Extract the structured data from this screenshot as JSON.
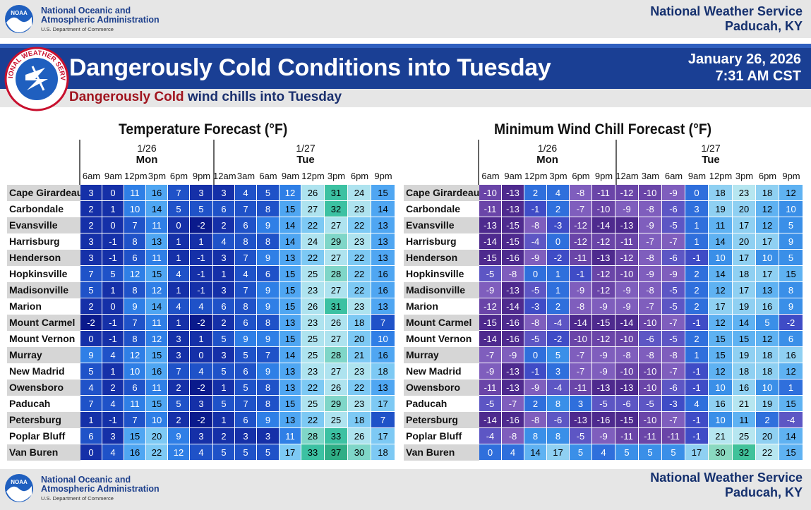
{
  "header": {
    "noaa_line1": "National Oceanic and",
    "noaa_line2": "Atmospheric Administration",
    "noaa_line3": "U.S. Department of Commerce",
    "nws_line1": "National Weather Service",
    "nws_line2": "Paducah, KY"
  },
  "banner": {
    "title": "Dangerously Cold Conditions into Tuesday",
    "date": "January 26, 2026",
    "time": "7:31 AM CST",
    "subtitle_red": "Dangerously Cold",
    "subtitle_rest": " wind chills into Tuesday",
    "seal_text": "NATIONAL WEATHER SERVICE"
  },
  "days": {
    "mon_date": "1/26",
    "mon_name": "Mon",
    "tue_date": "1/27",
    "tue_name": "Tue"
  },
  "hours": [
    "6am",
    "9am",
    "12pm",
    "3pm",
    "6pm",
    "9pm",
    "12am",
    "3am",
    "6am",
    "9am",
    "12pm",
    "3pm",
    "6pm",
    "9pm"
  ],
  "cities": [
    "Cape Girardeau",
    "Carbondale",
    "Evansville",
    "Harrisburg",
    "Henderson",
    "Hopkinsville",
    "Madisonville",
    "Marion",
    "Mount Carmel",
    "Mount Vernon",
    "Murray",
    "New Madrid",
    "Owensboro",
    "Paducah",
    "Petersburg",
    "Poplar Bluff",
    "Van Buren"
  ],
  "temperature": {
    "title": "Temperature Forecast (°F)",
    "values": [
      [
        3,
        0,
        11,
        16,
        7,
        3,
        3,
        4,
        5,
        12,
        26,
        31,
        24,
        15
      ],
      [
        2,
        1,
        10,
        14,
        5,
        5,
        6,
        7,
        8,
        15,
        27,
        32,
        23,
        14
      ],
      [
        2,
        0,
        7,
        11,
        0,
        -2,
        2,
        6,
        9,
        14,
        22,
        27,
        22,
        13
      ],
      [
        3,
        -1,
        8,
        13,
        1,
        1,
        4,
        8,
        8,
        14,
        24,
        29,
        23,
        13
      ],
      [
        3,
        -1,
        6,
        11,
        1,
        -1,
        3,
        7,
        9,
        13,
        22,
        27,
        22,
        13
      ],
      [
        7,
        5,
        12,
        15,
        4,
        -1,
        1,
        4,
        6,
        15,
        25,
        28,
        22,
        16
      ],
      [
        5,
        1,
        8,
        12,
        1,
        -1,
        3,
        7,
        9,
        15,
        23,
        27,
        22,
        16
      ],
      [
        2,
        0,
        9,
        14,
        4,
        4,
        6,
        8,
        9,
        15,
        26,
        31,
        23,
        13
      ],
      [
        -2,
        -1,
        7,
        11,
        1,
        -2,
        2,
        6,
        8,
        13,
        23,
        26,
        18,
        7
      ],
      [
        0,
        -1,
        8,
        12,
        3,
        1,
        5,
        9,
        9,
        15,
        25,
        27,
        20,
        10
      ],
      [
        9,
        4,
        12,
        15,
        3,
        0,
        3,
        5,
        7,
        14,
        25,
        28,
        21,
        16
      ],
      [
        5,
        1,
        10,
        16,
        7,
        4,
        5,
        6,
        9,
        13,
        23,
        27,
        23,
        18
      ],
      [
        4,
        2,
        6,
        11,
        2,
        -2,
        1,
        5,
        8,
        13,
        22,
        26,
        22,
        13
      ],
      [
        7,
        4,
        11,
        15,
        5,
        3,
        5,
        7,
        8,
        15,
        25,
        29,
        23,
        17
      ],
      [
        1,
        -1,
        7,
        10,
        2,
        -2,
        1,
        6,
        9,
        13,
        22,
        25,
        18,
        7
      ],
      [
        6,
        3,
        15,
        20,
        9,
        3,
        2,
        3,
        3,
        11,
        28,
        33,
        26,
        17
      ],
      [
        0,
        4,
        16,
        22,
        12,
        4,
        5,
        5,
        5,
        17,
        33,
        37,
        30,
        18
      ]
    ]
  },
  "windchill": {
    "title": "Minimum Wind Chill Forecast (°F)",
    "values": [
      [
        -10,
        -13,
        2,
        4,
        -8,
        -11,
        -12,
        -10,
        -9,
        0,
        18,
        23,
        18,
        12
      ],
      [
        -11,
        -13,
        -1,
        2,
        -7,
        -10,
        -9,
        -8,
        -6,
        3,
        19,
        20,
        12,
        10
      ],
      [
        -13,
        -15,
        -8,
        -3,
        -12,
        -14,
        -13,
        -9,
        -5,
        1,
        11,
        17,
        12,
        5
      ],
      [
        -14,
        -15,
        -4,
        0,
        -12,
        -12,
        -11,
        -7,
        -7,
        1,
        14,
        20,
        17,
        9
      ],
      [
        -15,
        -16,
        -9,
        -2,
        -11,
        -13,
        -12,
        -8,
        -6,
        -1,
        10,
        17,
        10,
        5
      ],
      [
        -5,
        -8,
        0,
        1,
        -1,
        -12,
        -10,
        -9,
        -9,
        2,
        14,
        18,
        17,
        15
      ],
      [
        -9,
        -13,
        -5,
        1,
        -9,
        -12,
        -9,
        -8,
        -5,
        2,
        12,
        17,
        13,
        8
      ],
      [
        -12,
        -14,
        -3,
        2,
        -8,
        -9,
        -9,
        -7,
        -5,
        2,
        17,
        19,
        16,
        9
      ],
      [
        -15,
        -16,
        -8,
        -4,
        -14,
        -15,
        -14,
        -10,
        -7,
        -1,
        12,
        14,
        5,
        -2
      ],
      [
        -14,
        -16,
        -5,
        -2,
        -10,
        -12,
        -10,
        -6,
        -5,
        2,
        15,
        15,
        12,
        6
      ],
      [
        -7,
        -9,
        0,
        5,
        -7,
        -9,
        -8,
        -8,
        -8,
        1,
        15,
        19,
        18,
        16
      ],
      [
        -9,
        -13,
        -1,
        3,
        -7,
        -9,
        -10,
        -10,
        -7,
        -1,
        12,
        18,
        18,
        12
      ],
      [
        -11,
        -13,
        -9,
        -4,
        -11,
        -13,
        -13,
        -10,
        -6,
        -1,
        10,
        16,
        10,
        1
      ],
      [
        -5,
        -7,
        2,
        8,
        3,
        -5,
        -6,
        -5,
        -3,
        4,
        16,
        21,
        19,
        15
      ],
      [
        -14,
        -16,
        -8,
        -6,
        -13,
        -16,
        -15,
        -10,
        -7,
        -1,
        10,
        11,
        2,
        -4
      ],
      [
        -4,
        -8,
        8,
        8,
        -5,
        -9,
        -11,
        -11,
        -11,
        -1,
        21,
        25,
        20,
        14
      ],
      [
        0,
        4,
        14,
        17,
        5,
        4,
        5,
        5,
        5,
        17,
        30,
        32,
        22,
        15
      ]
    ]
  },
  "colors": {
    "noaa_blue": "#1c3f8c",
    "banner_blue": "#1a3f94",
    "subtitle_red": "#a0141e"
  }
}
